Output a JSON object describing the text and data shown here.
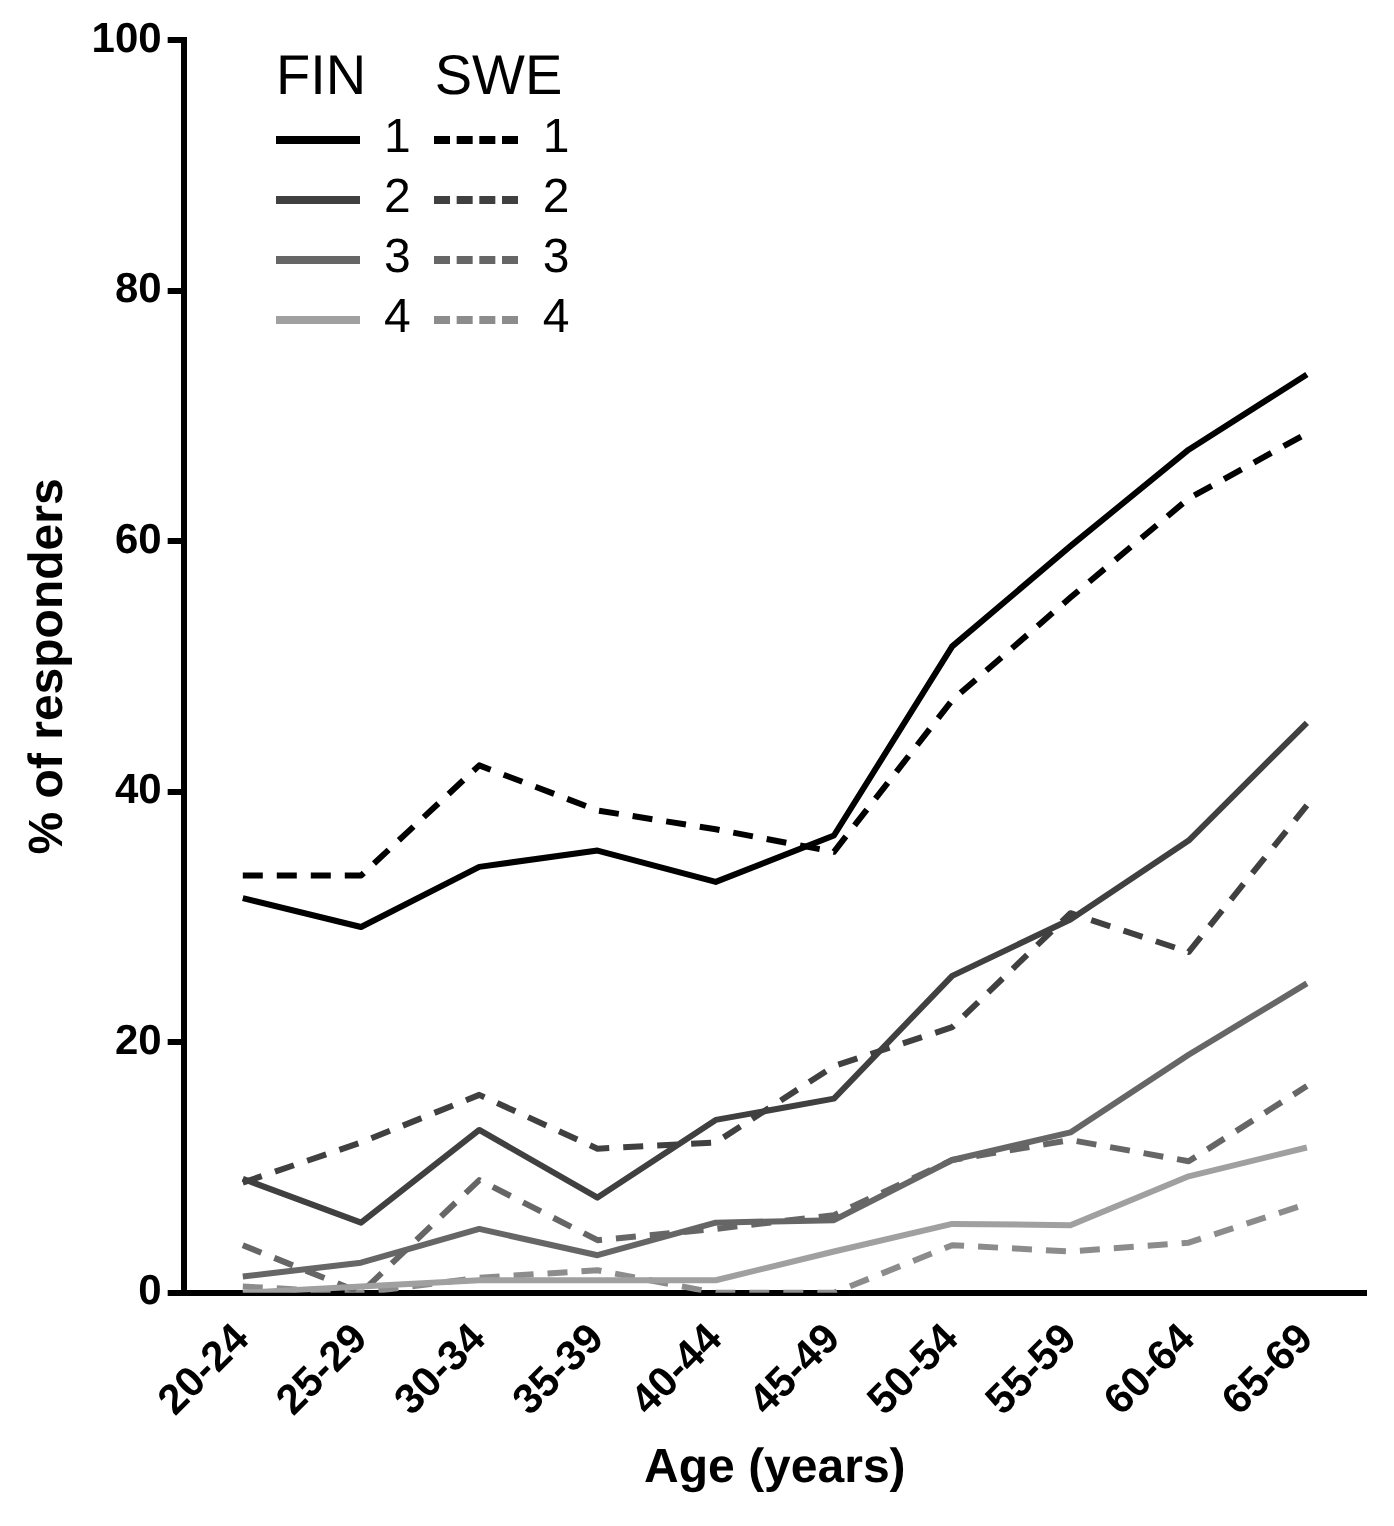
{
  "chart_data": {
    "type": "line",
    "xlabel": "Age (years)",
    "ylabel": "% of responders",
    "categories": [
      "20-24",
      "25-29",
      "30-34",
      "35-39",
      "40-44",
      "45-49",
      "50-54",
      "55-59",
      "60-64",
      "65-69"
    ],
    "ylim": [
      0,
      100
    ],
    "yticks": [
      0,
      20,
      40,
      60,
      80,
      100
    ],
    "grid": false,
    "legend": "top left",
    "marker": "none",
    "annotations": [
      "FIN",
      "SWE"
    ],
    "series": [
      {
        "name": "1",
        "color": "#000000",
        "line_style": "solid",
        "values": [
          31.5,
          29.2,
          34,
          35.3,
          32.8,
          36.5,
          51.6,
          59.6,
          67.3,
          73.3
        ]
      },
      {
        "name": "2",
        "color": "#404040",
        "line_style": "solid",
        "values": [
          9.1,
          5.6,
          13,
          7.6,
          13.8,
          15.5,
          25.3,
          29.8,
          36.1,
          45.5
        ]
      },
      {
        "name": "3",
        "color": "#666666",
        "line_style": "solid",
        "values": [
          1.3,
          2.4,
          5.1,
          3,
          5.6,
          5.8,
          10.6,
          12.8,
          19,
          24.7
        ]
      },
      {
        "name": "4",
        "color": "#a0a0a0",
        "line_style": "solid",
        "values": [
          0,
          0.5,
          1,
          1,
          1,
          3.3,
          5.5,
          5.4,
          9.3,
          11.6
        ]
      },
      {
        "name": "1",
        "color": "#000000",
        "line_style": "dashed",
        "values": [
          33.3,
          33.3,
          42.1,
          38.5,
          37,
          35.2,
          47.3,
          55.5,
          63.4,
          68.6
        ]
      },
      {
        "name": "2",
        "color": "#404040",
        "line_style": "dashed",
        "values": [
          8.8,
          12,
          15.8,
          11.5,
          12,
          18.1,
          21.2,
          30.3,
          27.2,
          38.9
        ]
      },
      {
        "name": "3",
        "color": "#666666",
        "line_style": "dashed",
        "values": [
          3.8,
          0,
          9,
          4.2,
          5.1,
          6.2,
          10.6,
          12.2,
          10.5,
          16.5
        ]
      },
      {
        "name": "4",
        "color": "#8c8c8c",
        "line_style": "dashed",
        "values": [
          0.5,
          0,
          1.2,
          1.8,
          0,
          0,
          3.8,
          3.3,
          4,
          7.1
        ]
      }
    ]
  }
}
